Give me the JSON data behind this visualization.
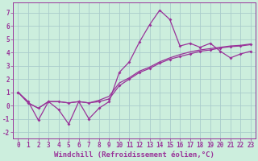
{
  "xlabel": "Windchill (Refroidissement éolien,°C)",
  "bg_color": "#cceedd",
  "grid_color": "#aacccc",
  "line_color": "#993399",
  "xlim": [
    -0.5,
    23.5
  ],
  "ylim": [
    -2.5,
    7.8
  ],
  "xticks": [
    0,
    1,
    2,
    3,
    4,
    5,
    6,
    7,
    8,
    9,
    10,
    11,
    12,
    13,
    14,
    15,
    16,
    17,
    18,
    19,
    20,
    21,
    22,
    23
  ],
  "yticks": [
    -2,
    -1,
    0,
    1,
    2,
    3,
    4,
    5,
    6,
    7
  ],
  "data_x": [
    0,
    1,
    2,
    3,
    4,
    5,
    6,
    7,
    8,
    9,
    10,
    11,
    12,
    13,
    14,
    15,
    16,
    17,
    18,
    19,
    20,
    21,
    22,
    23
  ],
  "data_y1": [
    1.0,
    0.3,
    -1.1,
    0.3,
    -0.3,
    -1.4,
    0.3,
    -1.0,
    -0.2,
    0.3,
    2.5,
    3.3,
    4.8,
    6.1,
    7.2,
    6.5,
    4.5,
    4.7,
    4.4,
    4.7,
    4.1,
    3.6,
    3.9,
    4.1
  ],
  "data_y2": [
    1.0,
    0.2,
    -0.2,
    0.3,
    0.3,
    0.2,
    0.3,
    0.2,
    0.3,
    0.5,
    1.5,
    2.0,
    2.5,
    2.8,
    3.2,
    3.5,
    3.7,
    3.9,
    4.1,
    4.2,
    4.35,
    4.45,
    4.5,
    4.6
  ],
  "data_y3": [
    1.0,
    0.2,
    -0.2,
    0.3,
    0.3,
    0.2,
    0.3,
    0.2,
    0.4,
    0.7,
    1.7,
    2.1,
    2.6,
    2.9,
    3.3,
    3.6,
    3.85,
    4.05,
    4.2,
    4.3,
    4.4,
    4.5,
    4.55,
    4.65
  ],
  "marker": "D",
  "marker_size": 2,
  "line_width": 0.9,
  "tick_fontsize": 5.5,
  "label_fontsize": 6.5
}
